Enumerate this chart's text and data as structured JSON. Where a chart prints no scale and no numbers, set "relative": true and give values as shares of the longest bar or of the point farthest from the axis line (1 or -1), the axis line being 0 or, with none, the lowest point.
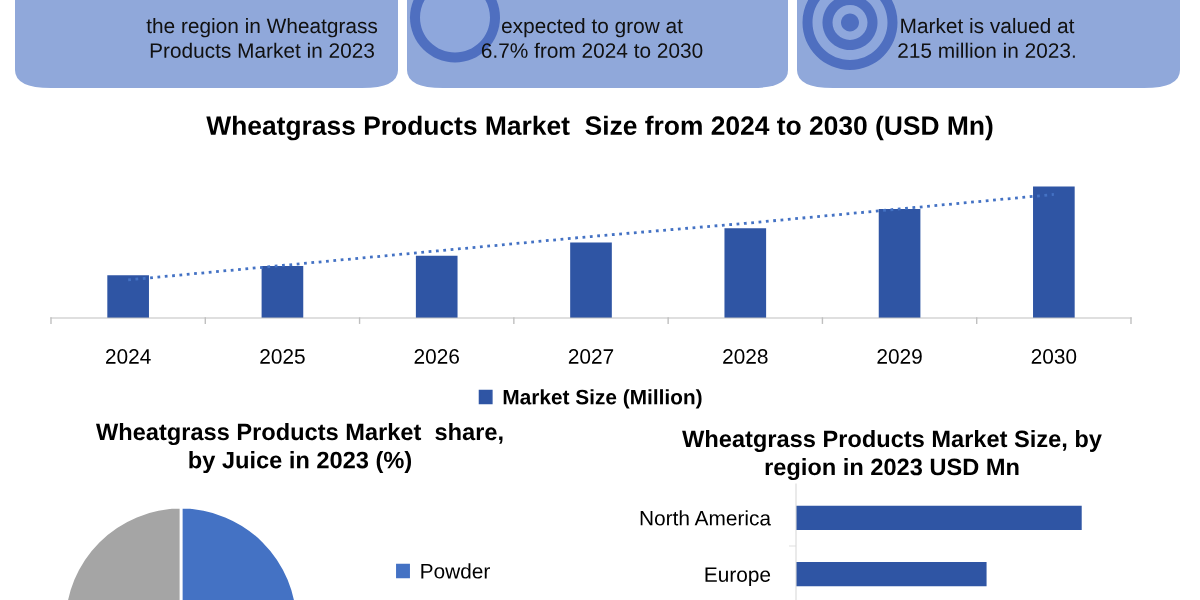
{
  "chart_data": [
    {
      "type": "other",
      "annotations": [
        "the region in Wheatgrass\nProducts Market in 2023",
        "expected to grow at\n6.7% from 2024 to 2030",
        "Market is valued at\n215 million in 2023."
      ]
    },
    {
      "type": "bar",
      "title": "Wheatgrass Products Market  Size from 2024 to 2030 (USD Mn)",
      "relative": true,
      "categories": [
        "2024",
        "2025",
        "2026",
        "2027",
        "2028",
        "2029",
        "2030"
      ],
      "legend": "bottom",
      "series": [
        {
          "name": "Market Size (Million)",
          "color": "#2f55a4",
          "values": [
            0.326,
            0.395,
            0.473,
            0.574,
            0.682,
            0.829,
            1
          ]
        },
        {
          "type": "line",
          "color": "#4472c4",
          "line_style": "dotted",
          "values": [
            0.29,
            0.4,
            0.51,
            0.62,
            0.72,
            0.83,
            0.94
          ]
        }
      ]
    },
    {
      "type": "pie",
      "title": "Wheatgrass Products Market  share,\nby Juice in 2023 (%)",
      "categories": [
        "Powder",
        null
      ],
      "values": [
        50,
        50
      ],
      "colors": [
        "#4472c4",
        "#a5a5a5"
      ],
      "legend": "right"
    },
    {
      "type": "bar",
      "orientation": "horizontal",
      "relative": true,
      "title": "Wheatgrass Products Market Size, by\nregion in 2023 USD Mn",
      "categories": [
        "North America",
        "Europe"
      ],
      "values": [
        1,
        0.667
      ],
      "color": "#2f55a4"
    }
  ]
}
